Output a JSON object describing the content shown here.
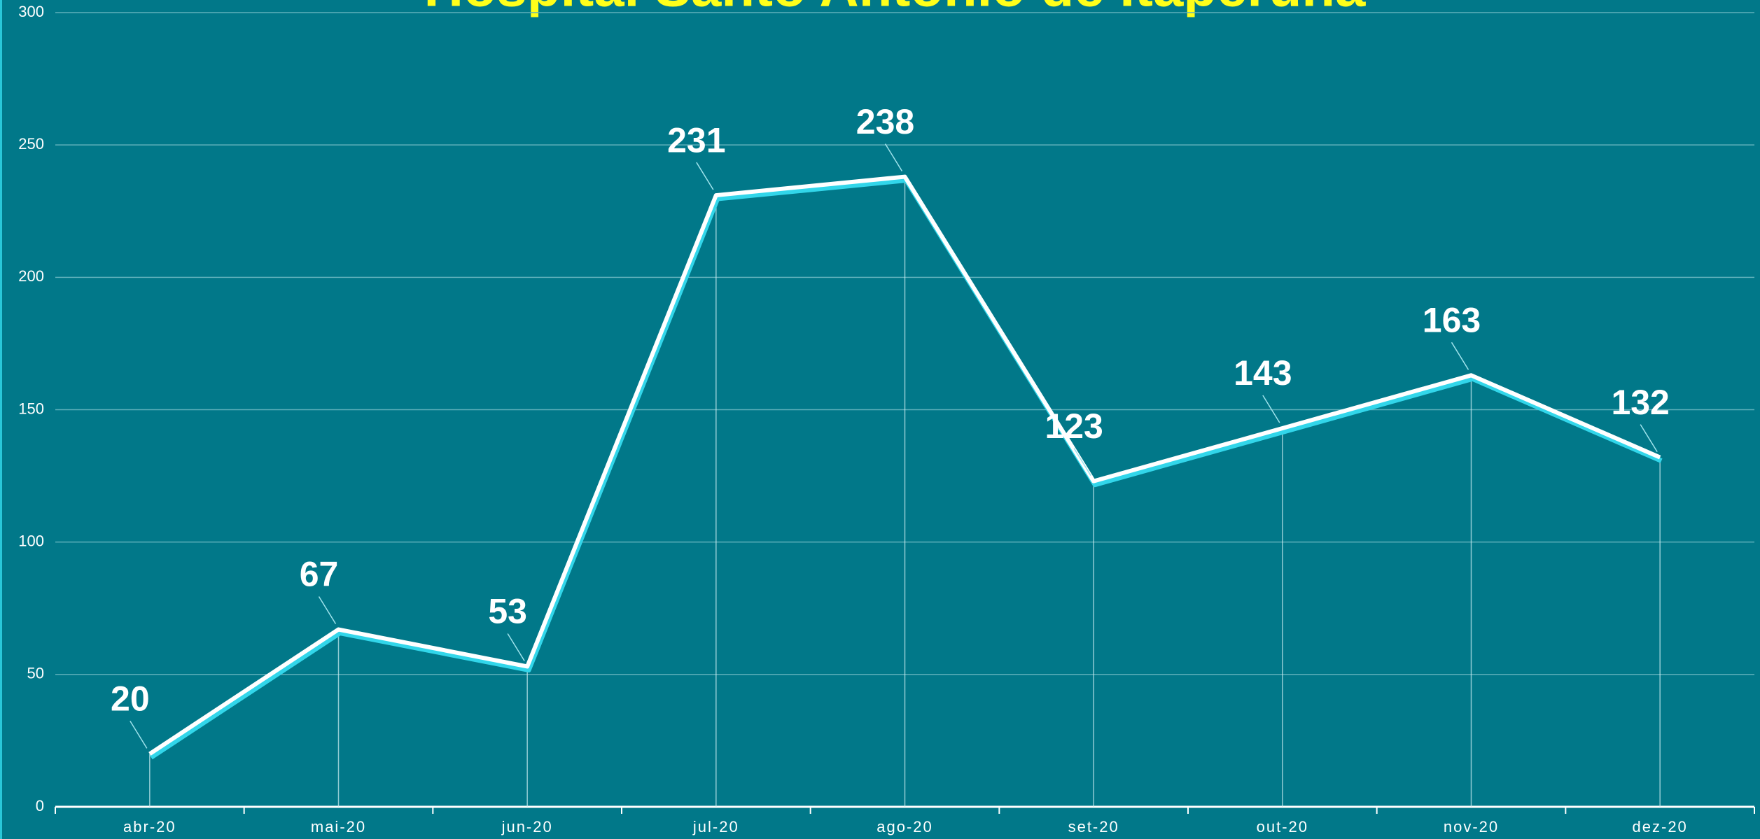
{
  "chart_data": {
    "type": "line",
    "title": "Hospital Santo Antônio de Itaperuna",
    "categories": [
      "abr-20",
      "mai-20",
      "jun-20",
      "jul-20",
      "ago-20",
      "set-20",
      "out-20",
      "nov-20",
      "dez-20"
    ],
    "values": [
      20,
      67,
      53,
      231,
      238,
      123,
      143,
      163,
      132
    ],
    "color": "#ffffff",
    "ylim": [
      0,
      300
    ],
    "yticks": [
      0,
      50,
      100,
      150,
      200,
      250,
      300
    ],
    "grid": true
  }
}
